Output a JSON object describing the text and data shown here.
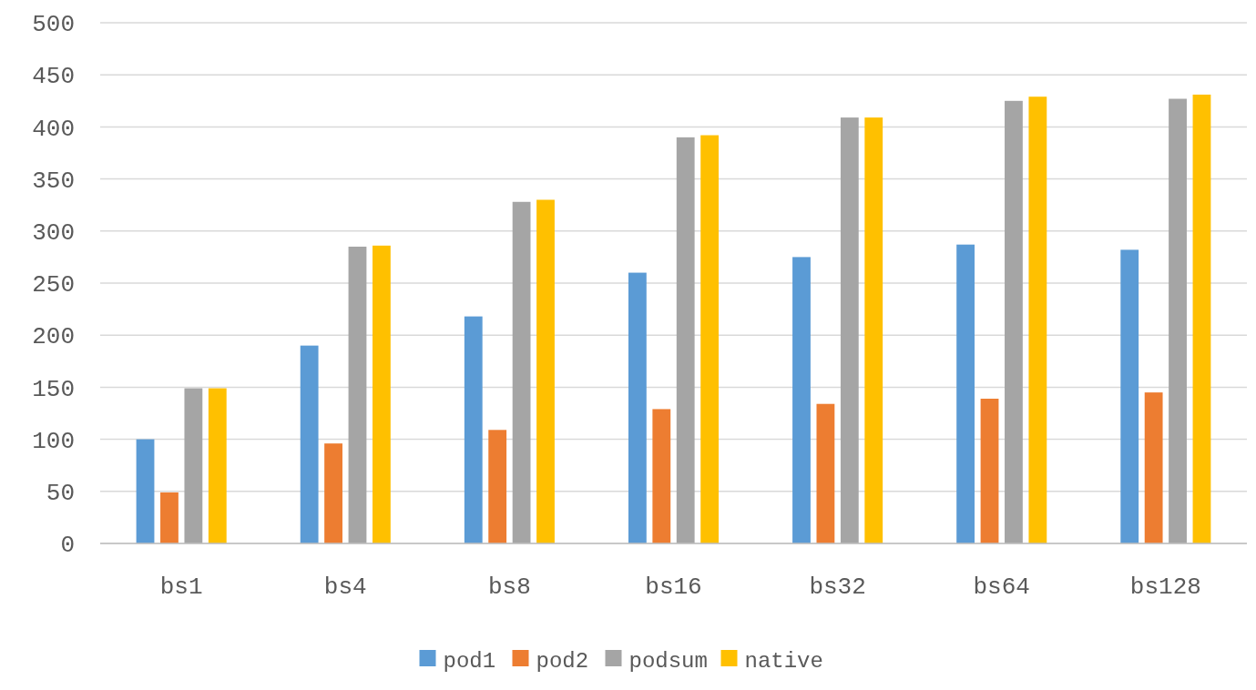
{
  "chart_data": {
    "type": "bar",
    "categories": [
      "bs1",
      "bs4",
      "bs8",
      "bs16",
      "bs32",
      "bs64",
      "bs128"
    ],
    "series": [
      {
        "name": "pod1",
        "color": "#5b9bd5",
        "values": [
          100,
          190,
          218,
          260,
          275,
          287,
          282
        ]
      },
      {
        "name": "pod2",
        "color": "#ed7d31",
        "values": [
          49,
          96,
          109,
          129,
          134,
          139,
          145
        ]
      },
      {
        "name": "podsum",
        "color": "#a5a5a5",
        "values": [
          149,
          285,
          328,
          390,
          409,
          425,
          427
        ]
      },
      {
        "name": "native",
        "color": "#ffc000",
        "values": [
          149,
          286,
          330,
          392,
          409,
          429,
          431
        ]
      }
    ],
    "ylim": [
      0,
      500
    ],
    "yticks": [
      0,
      50,
      100,
      150,
      200,
      250,
      300,
      350,
      400,
      450,
      500
    ],
    "grid": "y",
    "legend": "bottom"
  }
}
